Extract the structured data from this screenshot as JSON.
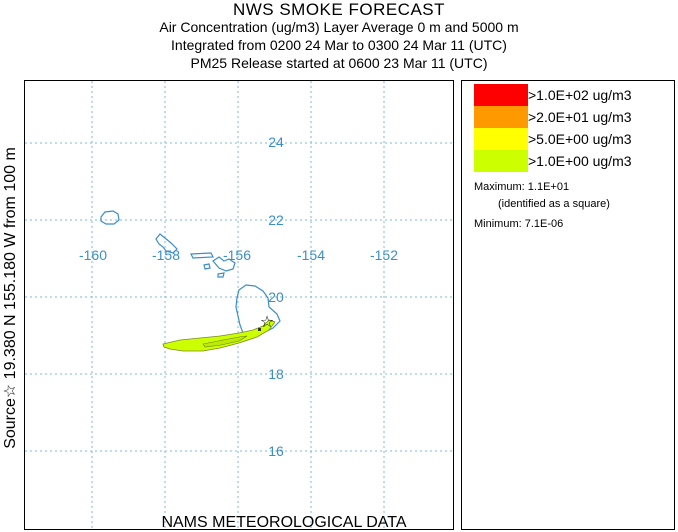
{
  "header": {
    "title": "NWS SMOKE FORECAST",
    "line2": "Air Concentration (ug/m3) Layer Average    0 m and  5000 m",
    "line3": "Integrated from 0200 24 Mar to 0300 24 Mar 11 (UTC)",
    "line4": "PM25 Release started at 0600 23 Mar 11 (UTC)"
  },
  "side_label": "Source☆ 19.380  N 155.180  W      from   100 m",
  "footer": "NAMS METEOROLOGICAL DATA",
  "map": {
    "lon_labels": [
      "-160",
      "-158",
      "-156",
      "-154",
      "-152"
    ],
    "lat_labels": [
      "24",
      "22",
      "20",
      "18",
      "16"
    ],
    "grid_color": "#7fb8dc",
    "coast_color": "#3a8fc8",
    "source_icon": "star-icon"
  },
  "legend": {
    "items": [
      {
        "label": ">1.0E+02 ug/m3",
        "color": "#ff0000"
      },
      {
        "label": ">2.0E+01 ug/m3",
        "color": "#ff9900"
      },
      {
        "label": ">5.0E+00 ug/m3",
        "color": "#ffff00"
      },
      {
        "label": ">1.0E+00 ug/m3",
        "color": "#ccff00"
      }
    ],
    "maximum": "Maximum: 1.1E+01",
    "maximum_note": "(identified as a square)",
    "minimum": "Minimum: 7.1E-06"
  }
}
